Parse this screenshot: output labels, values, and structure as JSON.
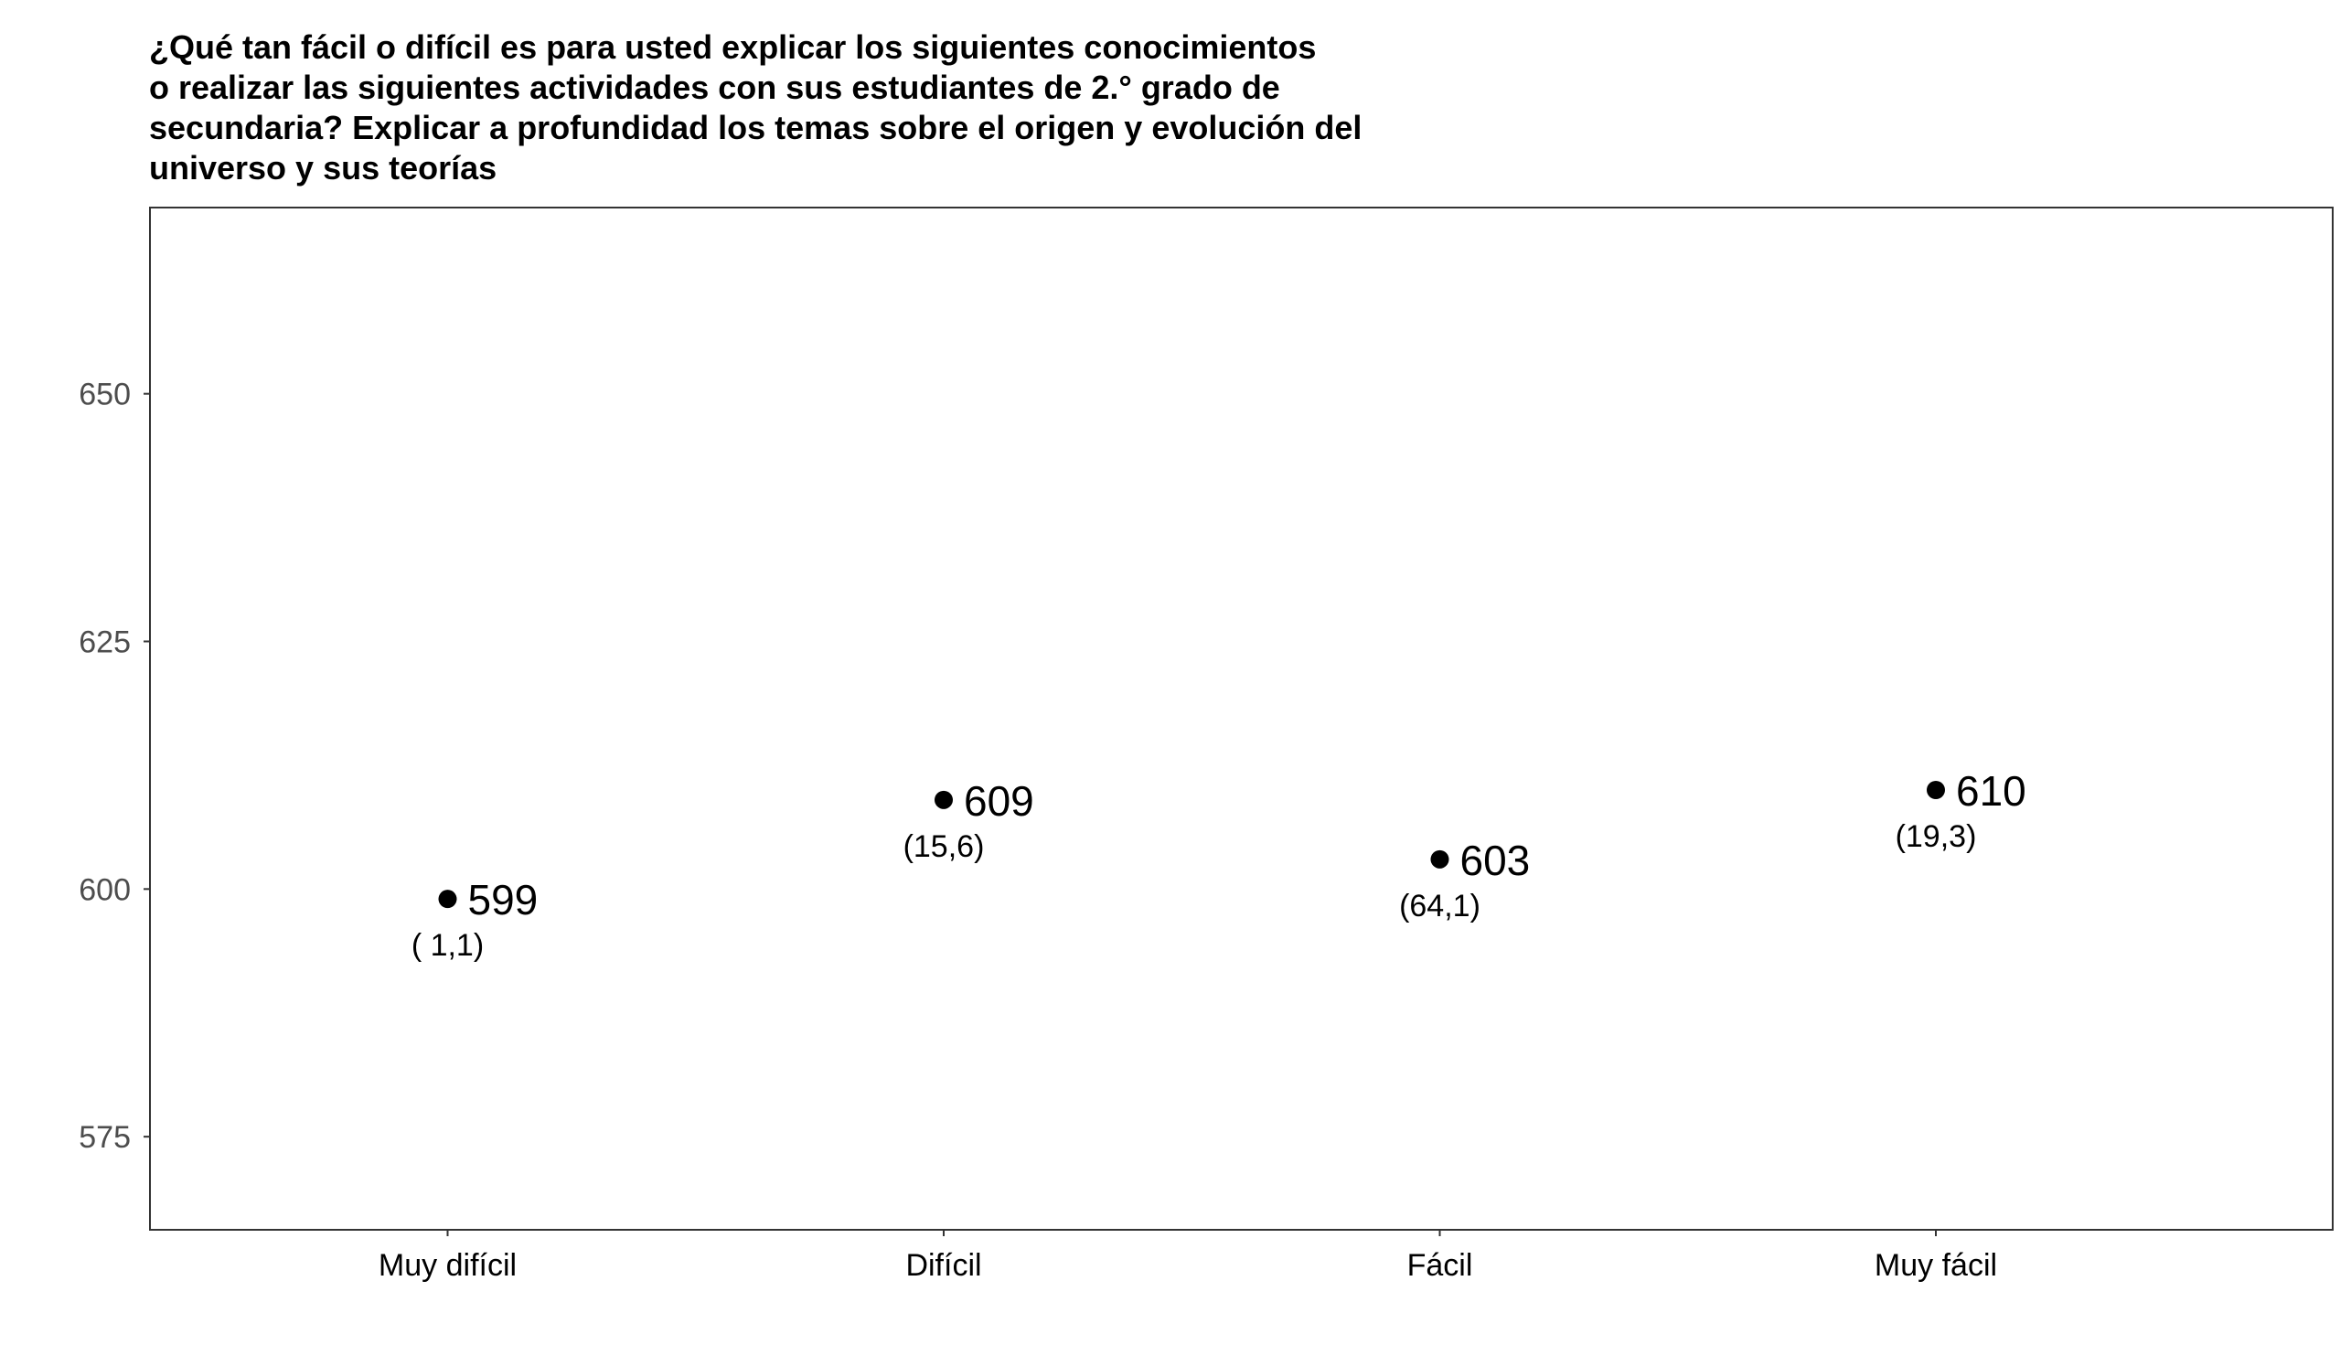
{
  "chart_data": {
    "type": "scatter",
    "title_lines": [
      "¿Qué tan fácil o difícil es para usted explicar los siguientes conocimientos",
      "o realizar las siguientes actividades con sus estudiantes de 2.° grado de",
      "secundaria? Explicar a profundidad los temas sobre el origen y evolución del",
      "universo y sus teorías"
    ],
    "categories": [
      "Muy difícil",
      "Difícil",
      "Fácil",
      "Muy fácil"
    ],
    "values": [
      599,
      609,
      603,
      610
    ],
    "value_labels": [
      "599",
      "609",
      "603",
      "610"
    ],
    "percent_labels": [
      "( 1,1)",
      "(15,6)",
      "(64,1)",
      "(19,3)"
    ],
    "yticks": [
      575,
      600,
      625,
      650
    ],
    "ylim": [
      565.6,
      668.8
    ],
    "grid": false,
    "legend": "none",
    "point_color": "#000000"
  }
}
